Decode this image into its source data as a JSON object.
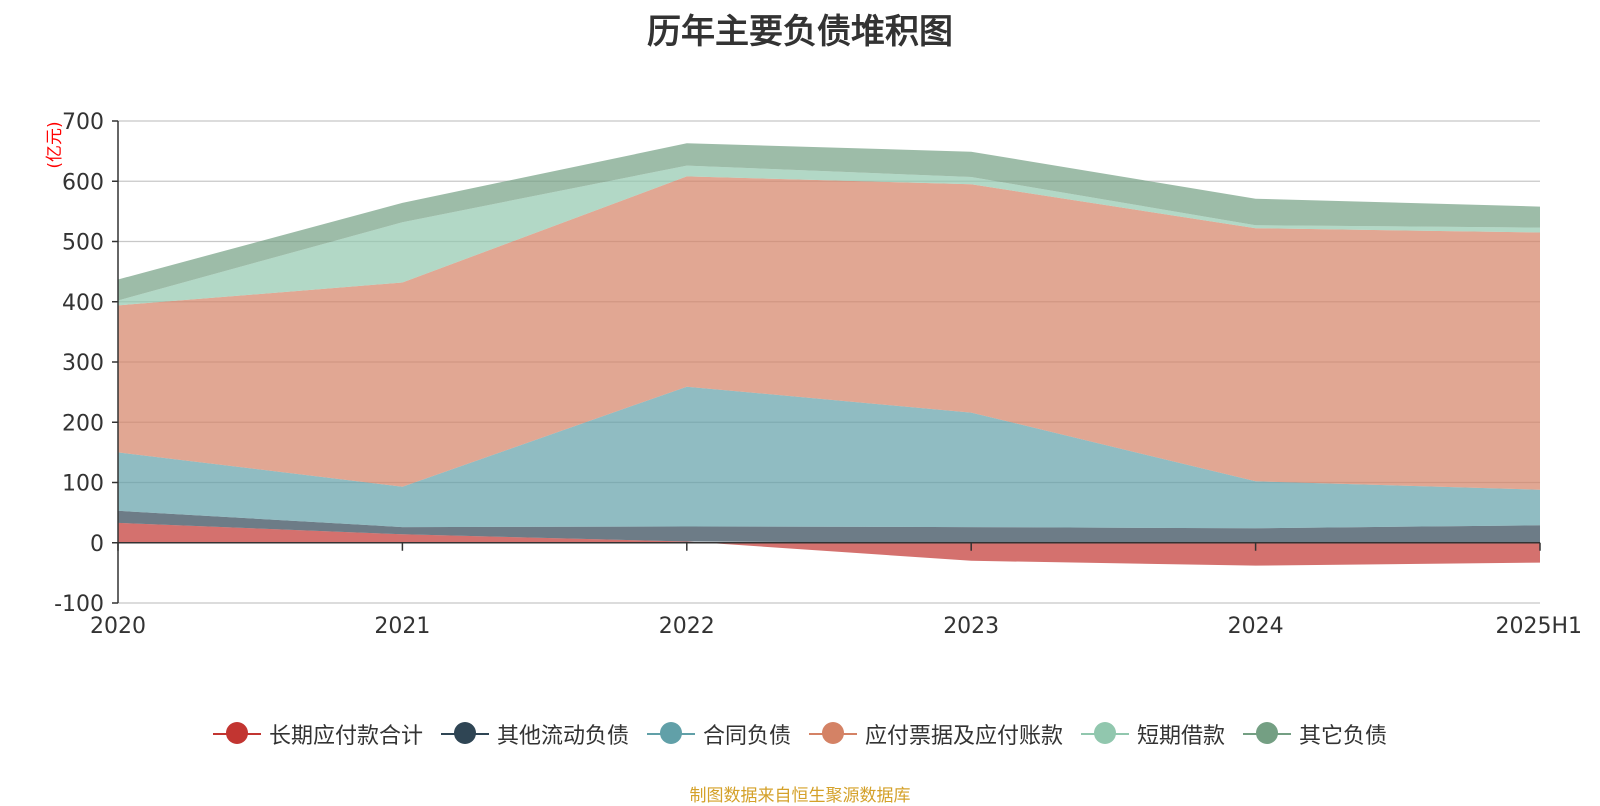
{
  "chart_data": {
    "type": "area",
    "stacked": true,
    "title": "历年主要负债堆积图",
    "unit_label": "(亿元)",
    "categories": [
      "2020",
      "2021",
      "2022",
      "2023",
      "2024",
      "2025H1"
    ],
    "ylim": [
      -100,
      700
    ],
    "yticks": [
      -100,
      0,
      100,
      200,
      300,
      400,
      500,
      600,
      700
    ],
    "grid": true,
    "legend_position": "bottom",
    "series": [
      {
        "name": "长期应付款合计",
        "color": "#c23531",
        "values": [
          33,
          14,
          2,
          -30,
          -38,
          -33
        ]
      },
      {
        "name": "其他流动负债",
        "color": "#2f4554",
        "values": [
          20,
          12,
          25,
          26,
          24,
          29
        ]
      },
      {
        "name": "合同负债",
        "color": "#61a0a8",
        "values": [
          97,
          67,
          232,
          190,
          78,
          59
        ]
      },
      {
        "name": "应付票据及应付账款",
        "color": "#d48265",
        "values": [
          244,
          339,
          349,
          379,
          420,
          427
        ]
      },
      {
        "name": "短期借款",
        "color": "#91c7ae",
        "values": [
          8,
          100,
          18,
          12,
          5,
          8
        ]
      },
      {
        "name": "其它负债",
        "color": "#749f83",
        "values": [
          35,
          32,
          37,
          42,
          44,
          35
        ]
      }
    ]
  },
  "source_note": "制图数据来自恒生聚源数据库"
}
